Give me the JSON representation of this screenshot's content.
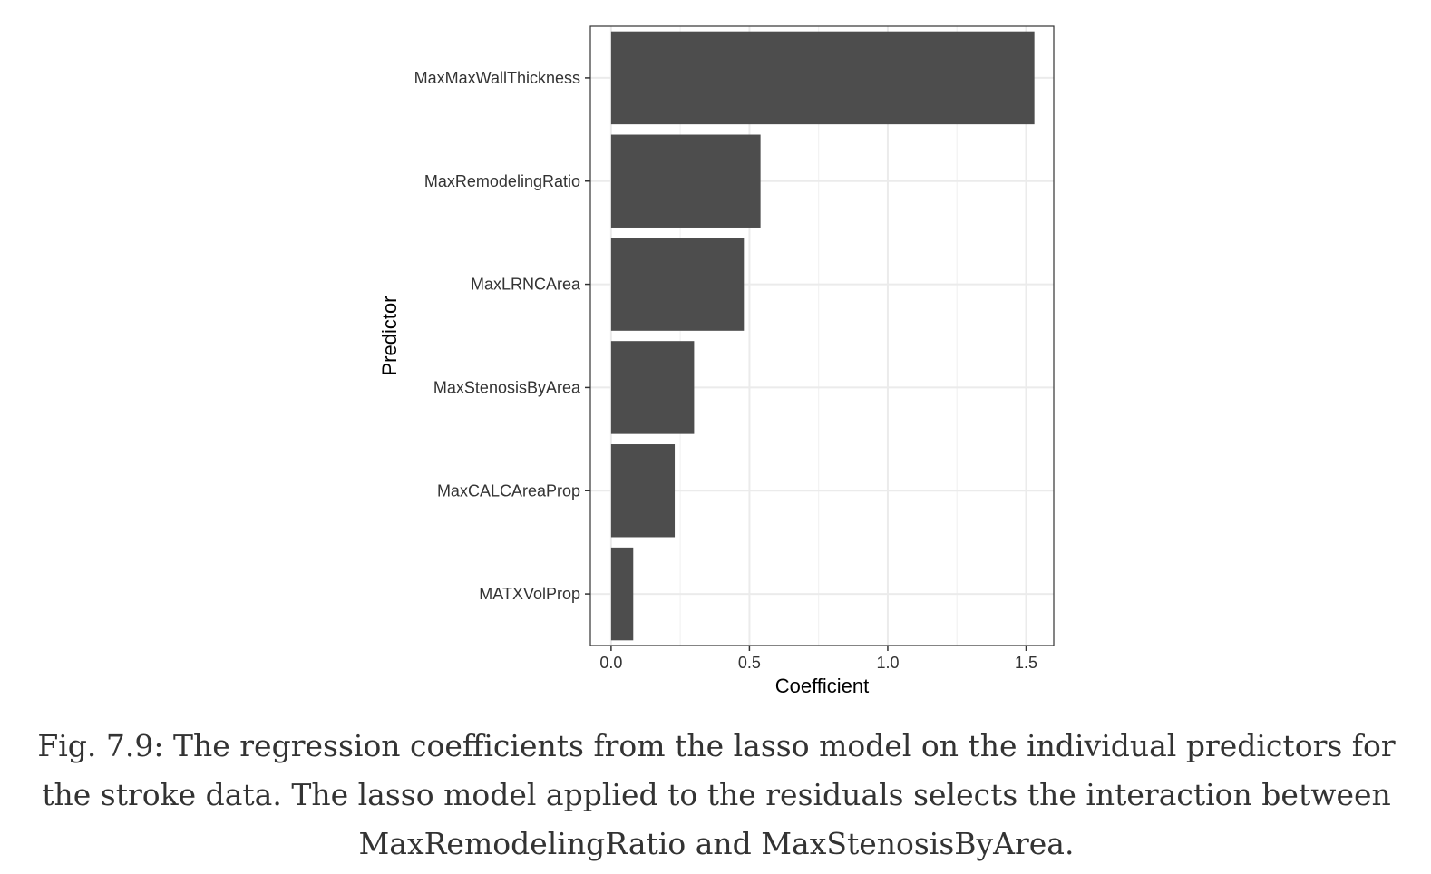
{
  "chart_data": {
    "type": "bar",
    "orientation": "horizontal",
    "categories": [
      "MaxMaxWallThickness",
      "MaxRemodelingRatio",
      "MaxLRNCArea",
      "MaxStenosisByArea",
      "MaxCALCAreaProp",
      "MATXVolProp"
    ],
    "values": [
      1.53,
      0.54,
      0.48,
      0.3,
      0.23,
      0.08
    ],
    "xlabel": "Coefficient",
    "ylabel": "Predictor",
    "xlim": [
      -0.075,
      1.6
    ],
    "xticks": [
      0.0,
      0.5,
      1.0,
      1.5
    ],
    "xtick_labels": [
      "0.0",
      "0.5",
      "1.0",
      "1.5"
    ],
    "grid": true,
    "bar_color": "#4d4d4d"
  },
  "caption": "Fig. 7.9: The regression coefficients from the lasso model on the individual predictors for the stroke data. The lasso model applied to the residuals selects the interaction between MaxRemodelingRatio and MaxStenosisByArea."
}
